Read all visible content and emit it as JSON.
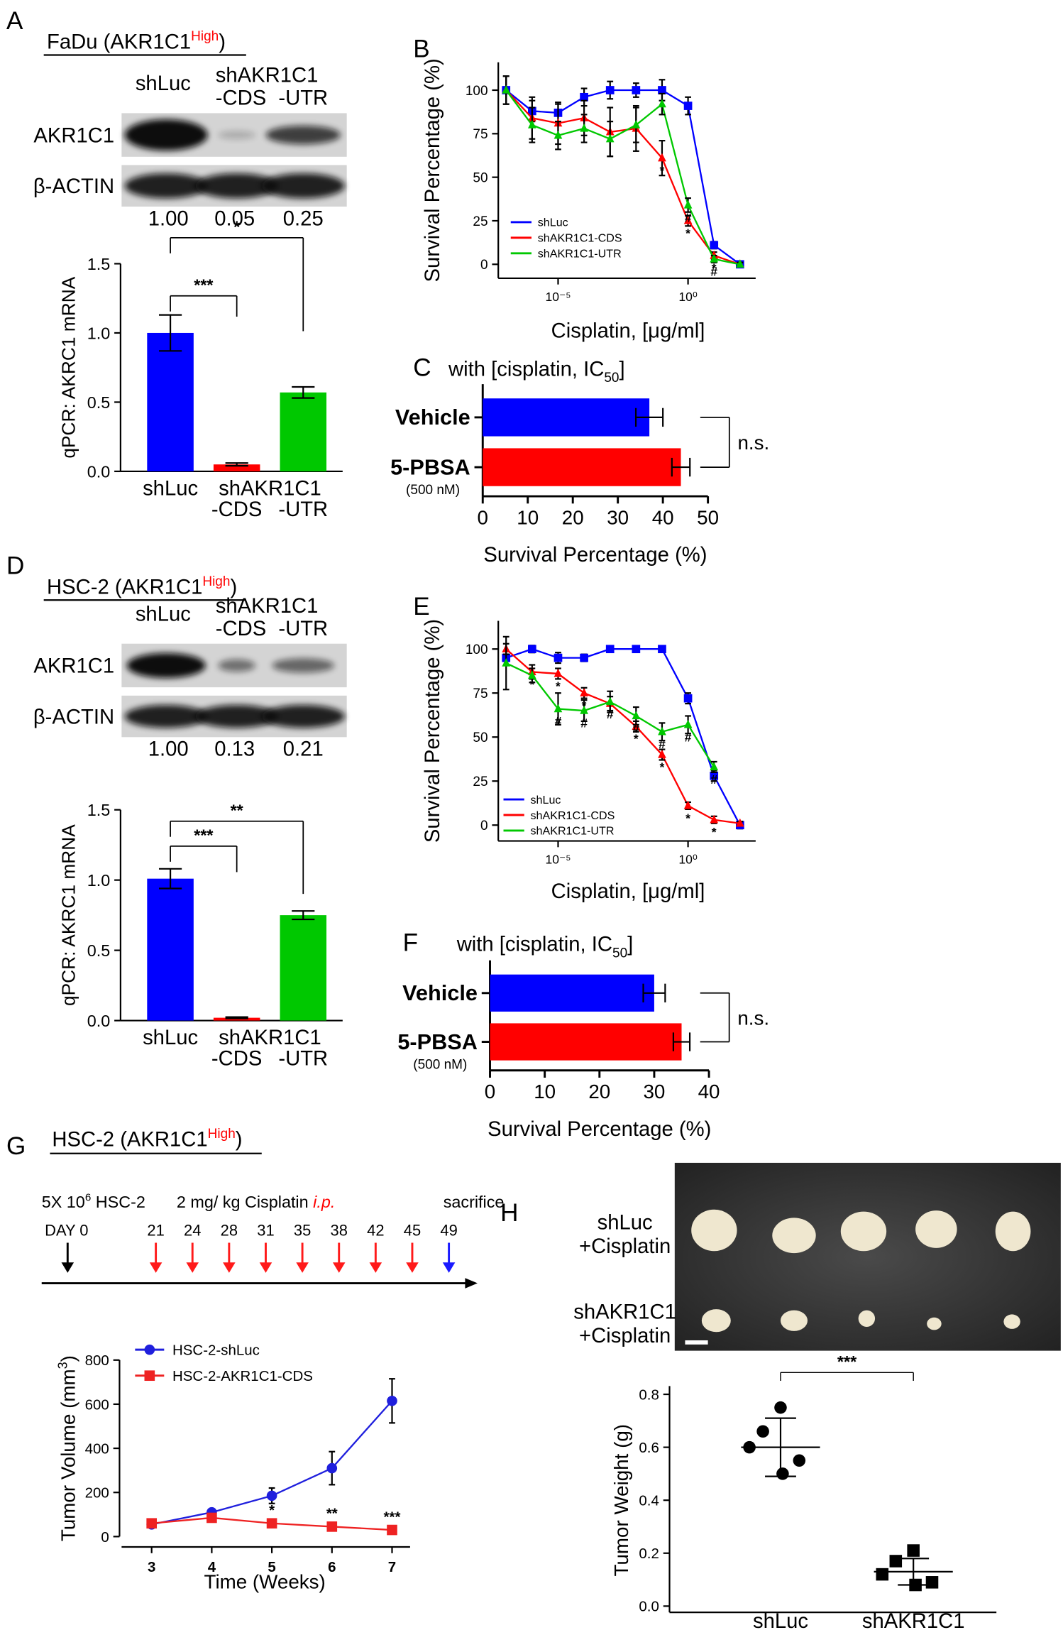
{
  "figure": {
    "A": {
      "letter": "A",
      "heading": [
        "FaDu (AKR1C1",
        "High",
        ")"
      ],
      "lanes": [
        "shLuc",
        "shAKR1C1",
        "-CDS",
        "-UTR"
      ],
      "proteins": [
        "AKR1C1",
        "β-ACTIN"
      ],
      "quantification": [
        "1.00",
        "0.05",
        "0.25"
      ]
    },
    "D": {
      "letter": "D",
      "heading": [
        "HSC-2 (AKR1C1",
        "High",
        ")"
      ],
      "lanes": [
        "shLuc",
        "shAKR1C1",
        "-CDS",
        "-UTR"
      ],
      "proteins": [
        "AKR1C1",
        "β-ACTIN"
      ],
      "quantification": [
        "1.00",
        "0.13",
        "0.21"
      ]
    },
    "G": {
      "letter": "G",
      "heading": [
        "HSC-2 (AKR1C1",
        "High",
        ")"
      ],
      "cells": [
        "5X 10",
        "6",
        " HSC-2"
      ],
      "treatment": [
        "2 mg/ kg Cisplatin ",
        "i.p."
      ],
      "end": "sacrifice",
      "start": "DAY 0",
      "days": [
        21,
        24,
        28,
        31,
        35,
        38,
        42,
        45,
        49
      ]
    },
    "H": {
      "letter": "H",
      "groups": [
        [
          "shLuc",
          "+Cisplatin"
        ],
        [
          "shAKR1C1",
          "+Cisplatin"
        ]
      ]
    }
  },
  "chart_data": [
    {
      "type": "bar",
      "ylabel": "qPCR: AKRC1 mRNA",
      "categories": [
        "shLuc",
        "-CDS",
        "-UTR"
      ],
      "category_group": "shAKR1C1",
      "values": [
        1.0,
        0.05,
        0.57
      ],
      "errors": [
        0.13,
        0.01,
        0.04
      ],
      "colors": [
        "#0000ff",
        "#ff0000",
        "#00c800"
      ],
      "ylim": [
        0,
        1.5
      ],
      "yticks": [
        {
          "value": 0,
          "label": "0.0"
        },
        {
          "value": 0.5,
          "label": "0.5"
        },
        {
          "value": 1,
          "label": "1.0"
        },
        {
          "value": 1.5,
          "label": "1.5"
        }
      ],
      "significance": [
        null,
        "***",
        "*"
      ]
    },
    {
      "type": "line",
      "panel_label": "B",
      "xscale": "log",
      "xlabel": "Cisplatin, [μg/ml]",
      "ylabel": "Survival Percentage (%)",
      "x": [
        1e-07,
        1e-06,
        1e-05,
        0.0001,
        0.001,
        0.01,
        0.1,
        1,
        10,
        100
      ],
      "xlim": [
        5e-08,
        400
      ],
      "xticks": [
        {
          "value": 1e-05,
          "label": "10⁻⁵"
        },
        {
          "value": 1,
          "label": "10⁰"
        }
      ],
      "ylim": [
        -8,
        116
      ],
      "yticks": [
        0,
        25,
        50,
        75,
        100
      ],
      "legend": "lower left",
      "annotation_color": "#000000",
      "series": [
        {
          "name": "shLuc",
          "color": "#0000ff",
          "marker": "square",
          "values": [
            100,
            88,
            87,
            96,
            100,
            100,
            100,
            91,
            11,
            0
          ],
          "errors": [
            8,
            6,
            5,
            5,
            5,
            4,
            6,
            5,
            2,
            1
          ],
          "annotations": [
            null,
            null,
            null,
            null,
            null,
            null,
            null,
            null,
            null,
            null
          ]
        },
        {
          "name": "shAKR1C1-CDS",
          "color": "#ff0000",
          "marker": "triangle",
          "values": [
            100,
            84,
            81,
            84,
            76,
            78,
            61,
            25,
            5,
            0
          ],
          "errors": [
            8,
            12,
            12,
            10,
            14,
            13,
            10,
            3,
            2,
            1
          ],
          "annotations": [
            null,
            null,
            null,
            null,
            null,
            null,
            "*",
            "*",
            "*",
            null
          ]
        },
        {
          "name": "shAKR1C1-UTR",
          "color": "#00c800",
          "marker": "triangle",
          "values": [
            100,
            80,
            74,
            78,
            72,
            80,
            92,
            34,
            3,
            0
          ],
          "errors": [
            8,
            10,
            8,
            8,
            10,
            10,
            6,
            4,
            2,
            1
          ],
          "annotations": [
            null,
            null,
            null,
            null,
            null,
            null,
            null,
            "#",
            "#",
            null
          ]
        }
      ]
    },
    {
      "type": "hbar",
      "panel_label": "C",
      "title": [
        "with [cisplatin, IC",
        "50",
        "]"
      ],
      "categories": [
        "Vehicle",
        "5-PBSA"
      ],
      "category_notes": [
        null,
        "(500 nM)"
      ],
      "values": [
        37,
        44
      ],
      "errors": [
        3,
        2
      ],
      "colors": [
        "#0000ff",
        "#ff0000"
      ],
      "xlim": [
        0,
        50
      ],
      "xticks": [
        0,
        10,
        20,
        30,
        40,
        50
      ],
      "xlabel": "Survival Percentage (%)",
      "comparison": "n.s."
    },
    {
      "type": "bar",
      "ylabel": "qPCR: AKRC1 mRNA",
      "categories": [
        "shLuc",
        "-CDS",
        "-UTR"
      ],
      "category_group": "shAKR1C1",
      "values": [
        1.01,
        0.02,
        0.75
      ],
      "errors": [
        0.07,
        0.005,
        0.03
      ],
      "colors": [
        "#0000ff",
        "#ff0000",
        "#00c800"
      ],
      "ylim": [
        0,
        1.5
      ],
      "yticks": [
        {
          "value": 0,
          "label": "0.0"
        },
        {
          "value": 0.5,
          "label": "0.5"
        },
        {
          "value": 1,
          "label": "1.0"
        },
        {
          "value": 1.5,
          "label": "1.5"
        }
      ],
      "significance": [
        null,
        "***",
        "**"
      ]
    },
    {
      "type": "line",
      "panel_label": "E",
      "xscale": "log",
      "xlabel": "Cisplatin, [μg/ml]",
      "ylabel": "Survival Percentage (%)",
      "x": [
        1e-07,
        1e-06,
        1e-05,
        0.0001,
        0.001,
        0.01,
        0.1,
        1,
        10,
        100
      ],
      "xlim": [
        5e-08,
        400
      ],
      "xticks": [
        {
          "value": 1e-05,
          "label": "10⁻⁵"
        },
        {
          "value": 1,
          "label": "10⁰"
        }
      ],
      "ylim": [
        -9,
        116
      ],
      "yticks": [
        0,
        25,
        50,
        75,
        100
      ],
      "legend": "lower left",
      "annotation_color": "#000000",
      "series": [
        {
          "name": "shLuc",
          "color": "#0000ff",
          "marker": "square",
          "values": [
            95,
            100,
            95,
            95,
            100,
            100,
            100,
            72,
            28,
            0
          ],
          "errors": [
            2,
            2,
            3,
            2,
            1,
            1,
            1,
            3,
            3,
            2
          ],
          "annotations": [
            null,
            null,
            null,
            null,
            null,
            null,
            null,
            null,
            null,
            null
          ]
        },
        {
          "name": "shAKR1C1-CDS",
          "color": "#ff0000",
          "marker": "triangle",
          "values": [
            100,
            87,
            86,
            75,
            69,
            56,
            40,
            11,
            3,
            1
          ],
          "errors": [
            3,
            4,
            3,
            3,
            4,
            3,
            3,
            2,
            2,
            1
          ],
          "annotations": [
            null,
            "*",
            "*",
            "*",
            null,
            "*",
            "*",
            "*",
            "*",
            null
          ]
        },
        {
          "name": "shAKR1C1-UTR",
          "color": "#00c800",
          "marker": "triangle",
          "values": [
            92,
            85,
            66,
            65,
            70,
            62,
            53,
            57,
            33,
            null
          ],
          "errors": [
            15,
            4,
            9,
            6,
            6,
            5,
            5,
            5,
            3,
            null
          ],
          "annotations": [
            null,
            null,
            "#",
            "#",
            "#",
            "#",
            "#",
            "#",
            "#",
            null
          ]
        }
      ]
    },
    {
      "type": "hbar",
      "panel_label": "F",
      "title": [
        "with [cisplatin, IC",
        "50",
        "]"
      ],
      "categories": [
        "Vehicle",
        "5-PBSA"
      ],
      "category_notes": [
        null,
        "(500 nM)"
      ],
      "values": [
        30,
        35
      ],
      "errors": [
        2,
        1.5
      ],
      "colors": [
        "#0000ff",
        "#ff0000"
      ],
      "xlim": [
        0,
        40
      ],
      "xticks": [
        0,
        10,
        20,
        30,
        40
      ],
      "xlabel": "Survival Percentage (%)",
      "comparison": "n.s."
    },
    {
      "type": "line",
      "xlabel": "Time (Weeks)",
      "ylabel": [
        "Tumor Volume (mm",
        "3",
        ")"
      ],
      "x": [
        3,
        4,
        5,
        6,
        7
      ],
      "xlim": [
        2.5,
        7.3
      ],
      "xticks": [
        3,
        4,
        5,
        6,
        7
      ],
      "ylim": [
        0,
        800
      ],
      "yticks": [
        0,
        200,
        400,
        600,
        800
      ],
      "legend": "upper left",
      "series": [
        {
          "name": "HSC-2-shLuc",
          "color": "#1f1fdd",
          "marker": "circle",
          "values": [
            55,
            110,
            185,
            310,
            615
          ],
          "errors": [
            5,
            15,
            35,
            75,
            100
          ],
          "annotations": [
            null,
            null,
            null,
            null,
            null
          ]
        },
        {
          "name": "HSC-2-AKR1C1-CDS",
          "color": "#ee2222",
          "marker": "square",
          "values": [
            60,
            85,
            60,
            45,
            30
          ],
          "errors": [
            5,
            10,
            10,
            10,
            5
          ],
          "annotations": [
            null,
            null,
            "*",
            "**",
            "***"
          ]
        }
      ]
    },
    {
      "type": "dotplot",
      "ylabel": "Tumor Weight (g)",
      "categories": [
        "shLuc",
        "shAKR1C1"
      ],
      "markers": [
        "circle",
        "square"
      ],
      "color": "#000000",
      "values": [
        [
          0.75,
          0.66,
          0.6,
          0.55,
          0.5
        ],
        [
          0.21,
          0.17,
          0.12,
          0.09,
          0.08
        ]
      ],
      "means": [
        0.6,
        0.13
      ],
      "sds": [
        0.11,
        0.05
      ],
      "ylim": [
        0,
        0.8
      ],
      "yticks": [
        {
          "value": 0,
          "label": "0.0"
        },
        {
          "value": 0.2,
          "label": "0.2"
        },
        {
          "value": 0.4,
          "label": "0.4"
        },
        {
          "value": 0.6,
          "label": "0.6"
        },
        {
          "value": 0.8,
          "label": "0.8"
        }
      ],
      "significance": "***"
    }
  ]
}
